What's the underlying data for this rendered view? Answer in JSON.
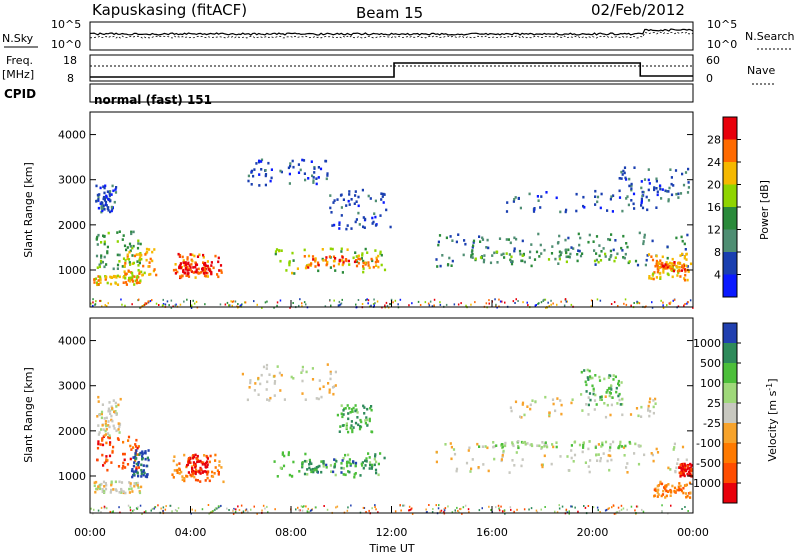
{
  "header": {
    "station": "Kapuskasing (fitACF)",
    "beam": "Beam 15",
    "date": "02/Feb/2012"
  },
  "top_panels": {
    "nsky_label": "N.Sky",
    "nsearch_label": "N.Search",
    "nsky_ticks": [
      "10^5",
      "10^0"
    ],
    "nsearch_ticks": [
      "10^5",
      "10^0"
    ],
    "freq_label": "Freq.",
    "freq_unit": "[MHz]",
    "freq_ticks": [
      "18",
      "8"
    ],
    "nave_label": "Nave",
    "nave_ticks": [
      "60",
      "0"
    ],
    "cpid_label": "CPID",
    "cpid_value": "normal (fast) 151"
  },
  "time_axis": {
    "xlabel": "Time UT",
    "ticks": [
      "00:00",
      "04:00",
      "08:00",
      "12:00",
      "16:00",
      "20:00",
      "00:00"
    ]
  },
  "chart_data": [
    {
      "type": "heatmap",
      "title": "",
      "ylabel": "Slant Range [km]",
      "xlabel": "Time UT",
      "x_range_hours": [
        0,
        24
      ],
      "ylim": [
        180,
        4500
      ],
      "yticks": [
        1000,
        2000,
        3000,
        4000
      ],
      "colorbar_label": "Power [dB]",
      "colorbar_ticks": [
        "28",
        "24",
        "20",
        "16",
        "12",
        "8",
        "4"
      ],
      "colorbar_colors": [
        "#e8000b",
        "#ff6a00",
        "#f5b800",
        "#8fd400",
        "#2a8a3a",
        "#4f8e73",
        "#1a3fb0",
        "#0a1aff"
      ],
      "regions": [
        {
          "t": [
            0.1,
            2.0
          ],
          "r": [
            700,
            900
          ],
          "level": 5
        },
        {
          "t": [
            0.2,
            2.0
          ],
          "r": [
            1050,
            1900
          ],
          "level": 3
        },
        {
          "t": [
            0.2,
            1.0
          ],
          "r": [
            2300,
            2900
          ],
          "level": 1
        },
        {
          "t": [
            1.3,
            2.6
          ],
          "r": [
            900,
            1500
          ],
          "level": 5
        },
        {
          "t": [
            3.3,
            5.2
          ],
          "r": [
            850,
            1400
          ],
          "level": 6
        },
        {
          "t": [
            3.5,
            4.8
          ],
          "r": [
            950,
            1200
          ],
          "level": 7
        },
        {
          "t": [
            7.3,
            11.7
          ],
          "r": [
            950,
            1500
          ],
          "level": 4
        },
        {
          "t": [
            8.5,
            11.5
          ],
          "r": [
            1050,
            1350
          ],
          "level": 6
        },
        {
          "t": [
            6.2,
            9.5
          ],
          "r": [
            2900,
            3500
          ],
          "level": 1
        },
        {
          "t": [
            9.5,
            12.0
          ],
          "r": [
            1900,
            2800
          ],
          "level": 1
        },
        {
          "t": [
            13.5,
            23.9
          ],
          "r": [
            1100,
            1850
          ],
          "level": 2
        },
        {
          "t": [
            15.0,
            21.8
          ],
          "r": [
            1200,
            1450
          ],
          "level": 3
        },
        {
          "t": [
            16.5,
            23.0
          ],
          "r": [
            2300,
            2800
          ],
          "level": 1
        },
        {
          "t": [
            21.0,
            23.8
          ],
          "r": [
            2600,
            3300
          ],
          "level": 1
        },
        {
          "t": [
            22.2,
            23.9
          ],
          "r": [
            800,
            1400
          ],
          "level": 5
        },
        {
          "t": [
            22.5,
            23.7
          ],
          "r": [
            1000,
            1200
          ],
          "level": 6
        }
      ]
    },
    {
      "type": "heatmap",
      "title": "",
      "ylabel": "Slant Range [km]",
      "xlabel": "Time UT",
      "x_range_hours": [
        0,
        24
      ],
      "ylim": [
        180,
        4500
      ],
      "yticks": [
        1000,
        2000,
        3000,
        4000
      ],
      "colorbar_label": "Velocity [m s^-1]",
      "colorbar_ticks": [
        "1000",
        "500",
        "100",
        "25",
        "-25",
        "-100",
        "-500",
        "-1000"
      ],
      "colorbar_colors": [
        "#2140b0",
        "#2e8a5a",
        "#4cbf3a",
        "#9fd87a",
        "#c8c8c0",
        "#f7a32b",
        "#ff7a00",
        "#ff4d00",
        "#e8000b"
      ],
      "regions": [
        {
          "t": [
            0.1,
            2.0
          ],
          "r": [
            650,
            900
          ],
          "level": 4
        },
        {
          "t": [
            0.2,
            2.0
          ],
          "r": [
            1150,
            1900
          ],
          "level": 1
        },
        {
          "t": [
            0.2,
            1.2
          ],
          "r": [
            1900,
            2800
          ],
          "level": 4
        },
        {
          "t": [
            1.6,
            2.3
          ],
          "r": [
            950,
            1600
          ],
          "level": 8
        },
        {
          "t": [
            3.2,
            5.3
          ],
          "r": [
            900,
            1500
          ],
          "level": 2
        },
        {
          "t": [
            3.8,
            4.7
          ],
          "r": [
            1050,
            1500
          ],
          "level": 0
        },
        {
          "t": [
            7.3,
            11.7
          ],
          "r": [
            1000,
            1550
          ],
          "level": 6
        },
        {
          "t": [
            8.5,
            11.4
          ],
          "r": [
            1100,
            1400
          ],
          "level": 7
        },
        {
          "t": [
            6.0,
            9.8
          ],
          "r": [
            2700,
            3500
          ],
          "level": 4
        },
        {
          "t": [
            9.8,
            11.2
          ],
          "r": [
            2000,
            2600
          ],
          "level": 6
        },
        {
          "t": [
            13.5,
            23.9
          ],
          "r": [
            1100,
            1750
          ],
          "level": 4
        },
        {
          "t": [
            15.0,
            22.0
          ],
          "r": [
            1650,
            1800
          ],
          "level": 5
        },
        {
          "t": [
            16.5,
            22.5
          ],
          "r": [
            2300,
            2800
          ],
          "level": 4
        },
        {
          "t": [
            19.5,
            21.2
          ],
          "r": [
            2600,
            3400
          ],
          "level": 6
        },
        {
          "t": [
            22.4,
            23.9
          ],
          "r": [
            550,
            900
          ],
          "level": 2
        },
        {
          "t": [
            23.4,
            23.9
          ],
          "r": [
            1000,
            1300
          ],
          "level": 0
        }
      ]
    }
  ]
}
